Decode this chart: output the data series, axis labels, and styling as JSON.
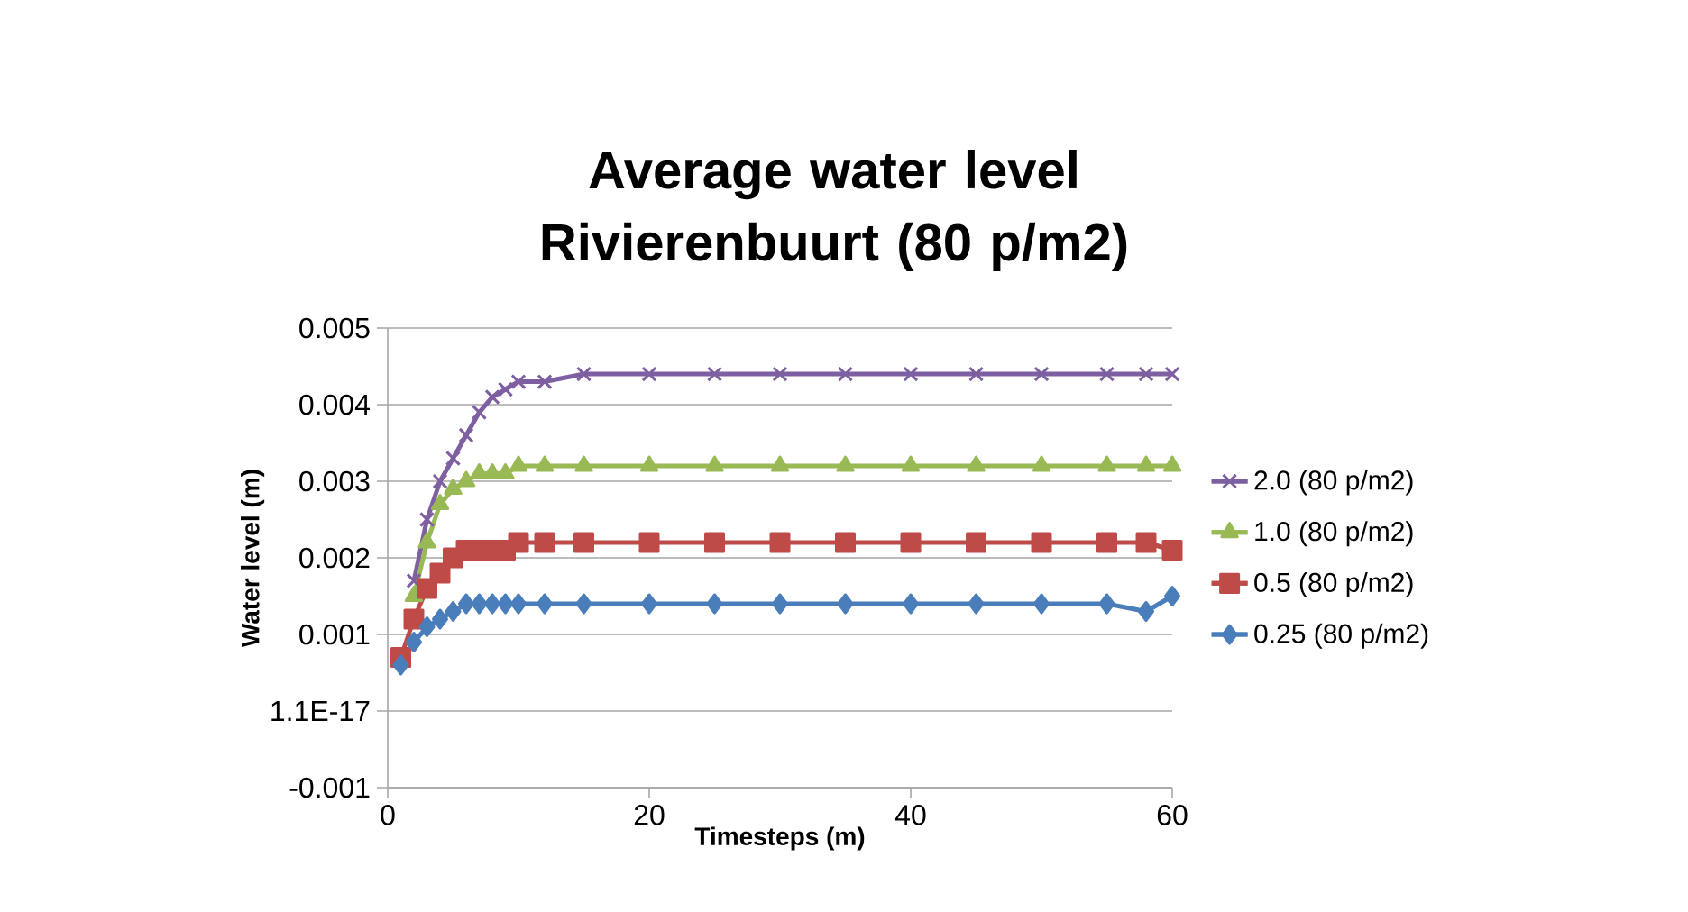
{
  "chart_data": {
    "type": "line",
    "title": "Average water level Rivierenbuurt (80 p/m2)",
    "xlabel": "Timesteps (m)",
    "ylabel": "Water level (m)",
    "xlim": [
      0,
      60
    ],
    "xticks": [
      0,
      20,
      40,
      60
    ],
    "ylim": [
      -0.001,
      0.005
    ],
    "yticks": [
      -0.001,
      {
        "value": 0,
        "label": "1.1E-17"
      },
      0.001,
      0.002,
      0.003,
      0.004,
      0.005
    ],
    "grid": "y",
    "legend": "right",
    "series": [
      {
        "name": "2.0 (80 p/m2)",
        "color": "#7e5fa1",
        "marker": "cross",
        "x": [
          2,
          3,
          4,
          5,
          6,
          7,
          8,
          9,
          10,
          12,
          15,
          20,
          25,
          30,
          35,
          40,
          45,
          50,
          55,
          58,
          60
        ],
        "values": [
          0.0017,
          0.0025,
          0.003,
          0.0033,
          0.0036,
          0.0039,
          0.0041,
          0.0042,
          0.0043,
          0.0043,
          0.0044,
          0.0044,
          0.0044,
          0.0044,
          0.0044,
          0.0044,
          0.0044,
          0.0044,
          0.0044,
          0.0044,
          0.0044
        ]
      },
      {
        "name": "1.0 (80 p/m2)",
        "color": "#98b954",
        "marker": "triangle",
        "x": [
          2,
          3,
          4,
          5,
          6,
          7,
          8,
          9,
          10,
          12,
          15,
          20,
          25,
          30,
          35,
          40,
          45,
          50,
          55,
          58,
          60
        ],
        "values": [
          0.0015,
          0.0022,
          0.0027,
          0.0029,
          0.003,
          0.0031,
          0.0031,
          0.0031,
          0.0032,
          0.0032,
          0.0032,
          0.0032,
          0.0032,
          0.0032,
          0.0032,
          0.0032,
          0.0032,
          0.0032,
          0.0032,
          0.0032,
          0.0032
        ]
      },
      {
        "name": "0.5 (80 p/m2)",
        "color": "#be4b48",
        "marker": "square",
        "x": [
          1,
          2,
          3,
          4,
          5,
          6,
          7,
          8,
          9,
          10,
          12,
          15,
          20,
          25,
          30,
          35,
          40,
          45,
          50,
          55,
          58,
          60
        ],
        "values": [
          0.0007,
          0.0012,
          0.0016,
          0.0018,
          0.002,
          0.0021,
          0.0021,
          0.0021,
          0.0021,
          0.0022,
          0.0022,
          0.0022,
          0.0022,
          0.0022,
          0.0022,
          0.0022,
          0.0022,
          0.0022,
          0.0022,
          0.0022,
          0.0022,
          0.0021
        ]
      },
      {
        "name": "0.25 (80 p/m2)",
        "color": "#4a7ebb",
        "marker": "diamond",
        "x": [
          1,
          2,
          3,
          4,
          5,
          6,
          7,
          8,
          9,
          10,
          12,
          15,
          20,
          25,
          30,
          35,
          40,
          45,
          50,
          55,
          58,
          60
        ],
        "values": [
          0.0006,
          0.0009,
          0.0011,
          0.0012,
          0.0013,
          0.0014,
          0.0014,
          0.0014,
          0.0014,
          0.0014,
          0.0014,
          0.0014,
          0.0014,
          0.0014,
          0.0014,
          0.0014,
          0.0014,
          0.0014,
          0.0014,
          0.0014,
          0.0013,
          0.0015
        ]
      }
    ]
  }
}
